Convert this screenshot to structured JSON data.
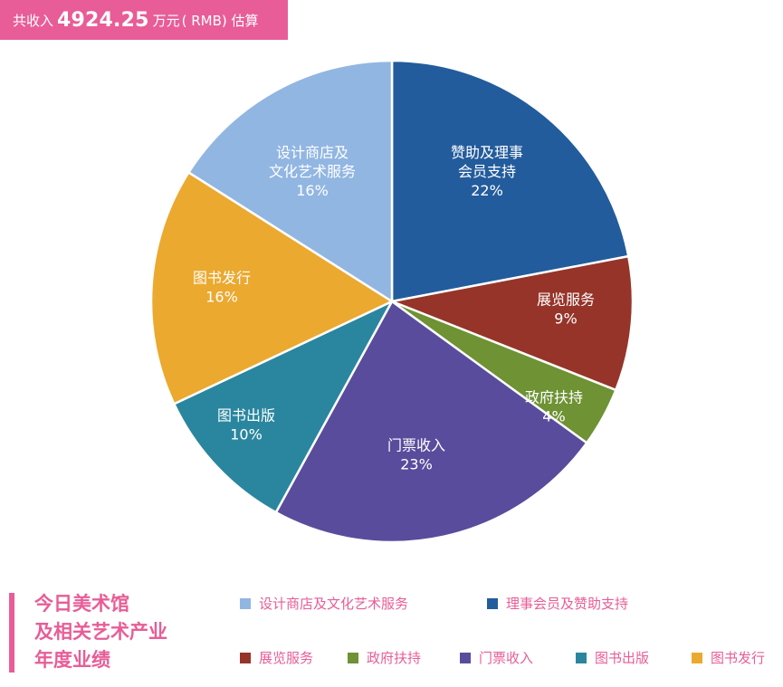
{
  "header": {
    "prefix": "共收入",
    "amount": "4924.25",
    "unit": "万元",
    "suffix": "( RMB) 估算",
    "background_color": "#e85d97"
  },
  "chart_data": {
    "type": "pie",
    "title": "",
    "slices": [
      {
        "label_lines": [
          "赞助及理事",
          "会员支持"
        ],
        "percent_label": "22%",
        "value": 22,
        "color": "#235c9c"
      },
      {
        "label_lines": [
          "展览服务"
        ],
        "percent_label": "9%",
        "value": 9,
        "color": "#96342a"
      },
      {
        "label_lines": [
          "政府扶持"
        ],
        "percent_label": "4%",
        "value": 4,
        "color": "#6e9234"
      },
      {
        "label_lines": [
          "门票收入"
        ],
        "percent_label": "23%",
        "value": 23,
        "color": "#5a4c9c"
      },
      {
        "label_lines": [
          "图书出版"
        ],
        "percent_label": "10%",
        "value": 10,
        "color": "#2a869e"
      },
      {
        "label_lines": [
          "图书发行"
        ],
        "percent_label": "16%",
        "value": 16,
        "color": "#eba930"
      },
      {
        "label_lines": [
          "设计商店及",
          "文化艺术服务"
        ],
        "percent_label": "16%",
        "value": 16,
        "color": "#92b6e2"
      }
    ],
    "legend_placement": "bottom-right"
  },
  "footer": {
    "title_lines": [
      "今日美术馆",
      "及相关艺术产业",
      "年度业绩"
    ],
    "accent_color": "#e85d97"
  },
  "legend": [
    {
      "label": "设计商店及文化艺术服务",
      "color": "#92b6e2"
    },
    {
      "label": "理事会员及赞助支持",
      "color": "#235c9c"
    },
    {
      "label": "展览服务",
      "color": "#96342a"
    },
    {
      "label": "政府扶持",
      "color": "#6e9234"
    },
    {
      "label": "门票收入",
      "color": "#5a4c9c"
    },
    {
      "label": "图书出版",
      "color": "#2a869e"
    },
    {
      "label": "图书发行",
      "color": "#eba930"
    }
  ]
}
